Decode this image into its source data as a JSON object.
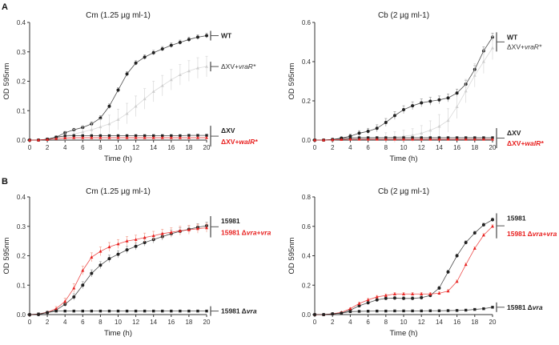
{
  "chart_data": [
    {
      "type": "line",
      "panel": "A",
      "title": "Cm (1.25 µg ml-1)",
      "xlabel": "Time (h)",
      "ylabel": "OD 595nm",
      "xlim": [
        0,
        20
      ],
      "ylim": [
        0,
        0.4
      ],
      "xticks": [
        "0",
        "2",
        "4",
        "6",
        "8",
        "10",
        "12",
        "14",
        "16",
        "18",
        "20"
      ],
      "yticks": [
        "0.0",
        "0.1",
        "0.2",
        "0.3",
        "0.4"
      ],
      "x": [
        0,
        1,
        2,
        3,
        4,
        5,
        6,
        7,
        8,
        9,
        10,
        11,
        12,
        13,
        14,
        15,
        16,
        17,
        18,
        19,
        20
      ],
      "series": [
        {
          "name": "WT",
          "label_parts": [
            [
              "WT",
              false
            ]
          ],
          "color": "#222222",
          "marker": "circle",
          "label_color": "#222222",
          "bold": true,
          "err": 0.008,
          "values": [
            0,
            0,
            0.003,
            0.01,
            0.025,
            0.035,
            0.043,
            0.055,
            0.075,
            0.115,
            0.17,
            0.225,
            0.262,
            0.282,
            0.297,
            0.31,
            0.322,
            0.332,
            0.342,
            0.35,
            0.355
          ]
        },
        {
          "name": "ΔXV+vraR*",
          "label_parts": [
            [
              "ΔXV+",
              false
            ],
            [
              "vraR*",
              true
            ]
          ],
          "color": "#cfcfcf",
          "marker": "triangle",
          "label_color": "#333333",
          "bold": false,
          "err": 0.035,
          "values": [
            0,
            0,
            0.002,
            0.008,
            0.015,
            0.02,
            0.028,
            0.035,
            0.045,
            0.055,
            0.07,
            0.09,
            0.115,
            0.14,
            0.165,
            0.185,
            0.205,
            0.222,
            0.235,
            0.245,
            0.25
          ]
        },
        {
          "name": "ΔXV",
          "label_parts": [
            [
              "ΔXV",
              false
            ]
          ],
          "color": "#222222",
          "marker": "square",
          "label_color": "#222222",
          "bold": true,
          "err": 0.002,
          "values": [
            0,
            0,
            0.003,
            0.01,
            0.014,
            0.015,
            0.015,
            0.015,
            0.015,
            0.015,
            0.015,
            0.015,
            0.015,
            0.015,
            0.015,
            0.015,
            0.015,
            0.015,
            0.016,
            0.016,
            0.016
          ]
        },
        {
          "name": "ΔXV+walR*",
          "label_parts": [
            [
              "ΔXV+",
              false
            ],
            [
              "walR*",
              true
            ]
          ],
          "color": "#e8201f",
          "marker": "triangle",
          "label_color": "#e8201f",
          "bold": true,
          "err": 0.002,
          "values": [
            0,
            0,
            0.002,
            0.005,
            0.007,
            0.008,
            0.008,
            0.008,
            0.008,
            0.008,
            0.008,
            0.008,
            0.008,
            0.008,
            0.008,
            0.008,
            0.008,
            0.008,
            0.008,
            0.008,
            0.008
          ]
        }
      ]
    },
    {
      "type": "line",
      "panel": "",
      "title": "Cb (2 µg ml-1)",
      "xlabel": "Time (h)",
      "ylabel": "OD 595nm",
      "xlim": [
        0,
        20
      ],
      "ylim": [
        0,
        0.6
      ],
      "xticks": [
        "0",
        "2",
        "4",
        "6",
        "8",
        "10",
        "12",
        "14",
        "16",
        "18",
        "20"
      ],
      "yticks": [
        "0.0",
        "0.2",
        "0.4",
        "0.6"
      ],
      "x": [
        0,
        1,
        2,
        3,
        4,
        5,
        6,
        7,
        8,
        9,
        10,
        11,
        12,
        13,
        14,
        15,
        16,
        17,
        18,
        19,
        20
      ],
      "series": [
        {
          "name": "WT",
          "label_parts": [
            [
              "WT",
              false
            ]
          ],
          "color": "#222222",
          "marker": "circle",
          "label_color": "#222222",
          "bold": true,
          "err": 0.02,
          "values": [
            0,
            0,
            0.003,
            0.01,
            0.02,
            0.035,
            0.045,
            0.06,
            0.09,
            0.125,
            0.155,
            0.175,
            0.19,
            0.198,
            0.205,
            0.215,
            0.24,
            0.285,
            0.36,
            0.455,
            0.525
          ]
        },
        {
          "name": "ΔXV+vraR*",
          "label_parts": [
            [
              "ΔXV+",
              false
            ],
            [
              "vraR*",
              true
            ]
          ],
          "color": "#cfcfcf",
          "marker": "triangle",
          "label_color": "#333333",
          "bold": false,
          "err": 0.06,
          "values": [
            0,
            0,
            0,
            0.003,
            0.005,
            0.007,
            0.008,
            0.01,
            0.012,
            0.015,
            0.02,
            0.025,
            0.035,
            0.05,
            0.07,
            0.1,
            0.17,
            0.25,
            0.33,
            0.4,
            0.47
          ]
        },
        {
          "name": "ΔXV",
          "label_parts": [
            [
              "ΔXV",
              false
            ]
          ],
          "color": "#222222",
          "marker": "square",
          "label_color": "#222222",
          "bold": true,
          "err": 0.002,
          "values": [
            0,
            0,
            0.003,
            0.008,
            0.011,
            0.012,
            0.012,
            0.012,
            0.012,
            0.012,
            0.012,
            0.012,
            0.012,
            0.012,
            0.012,
            0.012,
            0.012,
            0.012,
            0.012,
            0.012,
            0.012
          ]
        },
        {
          "name": "ΔXV+walR*",
          "label_parts": [
            [
              "ΔXV+",
              false
            ],
            [
              "walR*",
              true
            ]
          ],
          "color": "#e8201f",
          "marker": "triangle",
          "label_color": "#e8201f",
          "bold": true,
          "err": 0.002,
          "values": [
            0,
            0,
            0.001,
            0.003,
            0.004,
            0.004,
            0.004,
            0.004,
            0.004,
            0.004,
            0.004,
            0.004,
            0.004,
            0.004,
            0.004,
            0.004,
            0.004,
            0.004,
            0.004,
            0.004,
            0.004
          ]
        }
      ]
    },
    {
      "type": "line",
      "panel": "B",
      "title": "Cm (1.25 µg ml-1)",
      "xlabel": "Time (h)",
      "ylabel": "OD 595nm",
      "xlim": [
        0,
        20
      ],
      "ylim": [
        0,
        0.4
      ],
      "xticks": [
        "0",
        "2",
        "4",
        "6",
        "8",
        "10",
        "12",
        "14",
        "16",
        "18",
        "20"
      ],
      "yticks": [
        "0.0",
        "0.1",
        "0.2",
        "0.3",
        "0.4"
      ],
      "x": [
        0,
        1,
        2,
        3,
        4,
        5,
        6,
        7,
        8,
        9,
        10,
        11,
        12,
        13,
        14,
        15,
        16,
        17,
        18,
        19,
        20
      ],
      "series": [
        {
          "name": "15981",
          "label_parts": [
            [
              "15981",
              false
            ]
          ],
          "color": "#222222",
          "marker": "circle",
          "label_color": "#222222",
          "bold": true,
          "err": 0.012,
          "values": [
            0,
            0,
            0.007,
            0.015,
            0.035,
            0.06,
            0.1,
            0.14,
            0.168,
            0.19,
            0.205,
            0.22,
            0.232,
            0.245,
            0.255,
            0.265,
            0.275,
            0.283,
            0.29,
            0.297,
            0.302
          ]
        },
        {
          "name": "15981 Δvra+vra",
          "label_parts": [
            [
              "15981 Δ",
              false
            ],
            [
              "vra",
              true
            ],
            [
              "+",
              false
            ],
            [
              "vra",
              true
            ]
          ],
          "color": "#e8201f",
          "marker": "triangle",
          "label_color": "#e8201f",
          "bold": true,
          "err": 0.015,
          "values": [
            0,
            0.002,
            0.008,
            0.02,
            0.045,
            0.09,
            0.15,
            0.195,
            0.215,
            0.23,
            0.24,
            0.25,
            0.255,
            0.262,
            0.268,
            0.275,
            0.28,
            0.285,
            0.288,
            0.292,
            0.295
          ]
        },
        {
          "name": "15981 Δvra",
          "label_parts": [
            [
              "15981 Δ",
              false
            ],
            [
              "vra",
              true
            ]
          ],
          "color": "#222222",
          "marker": "square",
          "label_color": "#222222",
          "bold": true,
          "err": 0.001,
          "values": [
            0,
            0.002,
            0.007,
            0.012,
            0.012,
            0.012,
            0.012,
            0.012,
            0.012,
            0.012,
            0.012,
            0.012,
            0.012,
            0.012,
            0.012,
            0.012,
            0.012,
            0.012,
            0.012,
            0.012,
            0.012
          ]
        }
      ]
    },
    {
      "type": "line",
      "panel": "",
      "title": "Cb (2 µg ml-1)",
      "xlabel": "Time (h)",
      "ylabel": "OD 595nm",
      "xlim": [
        0,
        20
      ],
      "ylim": [
        0,
        0.8
      ],
      "xticks": [
        "0",
        "2",
        "4",
        "6",
        "8",
        "10",
        "12",
        "14",
        "16",
        "18",
        "20"
      ],
      "yticks": [
        "0.0",
        "0.2",
        "0.4",
        "0.6",
        "0.8"
      ],
      "x": [
        0,
        1,
        2,
        3,
        4,
        5,
        6,
        7,
        8,
        9,
        10,
        11,
        12,
        13,
        14,
        15,
        16,
        17,
        18,
        19,
        20
      ],
      "series": [
        {
          "name": "15981",
          "label_parts": [
            [
              "15981",
              false
            ]
          ],
          "color": "#222222",
          "marker": "circle",
          "label_color": "#222222",
          "bold": true,
          "err": 0.012,
          "values": [
            0,
            0,
            0.005,
            0.01,
            0.03,
            0.06,
            0.08,
            0.1,
            0.11,
            0.112,
            0.11,
            0.11,
            0.115,
            0.13,
            0.18,
            0.29,
            0.4,
            0.49,
            0.555,
            0.61,
            0.645
          ]
        },
        {
          "name": "15981 Δvra+vra",
          "label_parts": [
            [
              "15981 Δ",
              false
            ],
            [
              "vra",
              true
            ],
            [
              "+",
              false
            ],
            [
              "vra",
              true
            ]
          ],
          "color": "#e8201f",
          "marker": "triangle",
          "label_color": "#e8201f",
          "bold": true,
          "err": 0.01,
          "values": [
            0,
            0,
            0.005,
            0.015,
            0.04,
            0.075,
            0.1,
            0.12,
            0.13,
            0.14,
            0.14,
            0.14,
            0.14,
            0.14,
            0.145,
            0.16,
            0.225,
            0.34,
            0.45,
            0.54,
            0.6
          ]
        },
        {
          "name": "15981 Δvra",
          "label_parts": [
            [
              "15981 Δ",
              false
            ],
            [
              "vra",
              true
            ]
          ],
          "color": "#222222",
          "marker": "square",
          "label_color": "#222222",
          "bold": true,
          "err": 0.002,
          "values": [
            0,
            0,
            0.005,
            0.01,
            0.02,
            0.022,
            0.023,
            0.024,
            0.024,
            0.025,
            0.025,
            0.025,
            0.025,
            0.026,
            0.026,
            0.027,
            0.028,
            0.03,
            0.035,
            0.04,
            0.05
          ]
        }
      ]
    }
  ]
}
